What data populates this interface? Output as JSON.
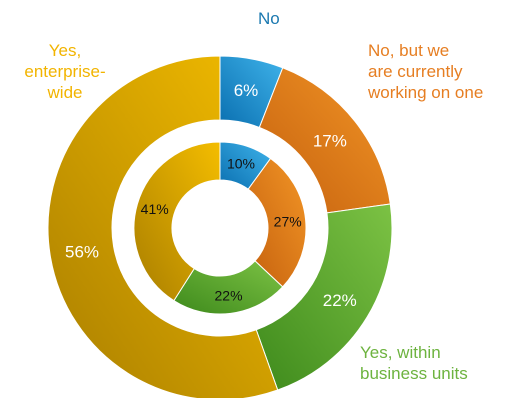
{
  "chart_data": {
    "type": "pie",
    "subtype": "double-donut",
    "categories": [
      "No",
      "No, but we are currently working on one",
      "Yes, within business units",
      "Yes, enterprise-wide"
    ],
    "category_labels": [
      "No",
      "No, but we\nare currently\nworking on one",
      "Yes, within\nbusiness units",
      "Yes,\nenterprise-\nwide"
    ],
    "series": [
      {
        "ring": "outer",
        "values": [
          6,
          17,
          22,
          56
        ],
        "labels": [
          "6%",
          "17%",
          "22%",
          "56%"
        ]
      },
      {
        "ring": "inner",
        "values": [
          10,
          27,
          22,
          41
        ],
        "labels": [
          "10%",
          "27%",
          "22%",
          "41%"
        ]
      }
    ],
    "colors": {
      "No": [
        "#0a6fb0",
        "#3fb3ea"
      ],
      "No, but we are currently working on one": [
        "#c4600e",
        "#f39626"
      ],
      "Yes, within business units": [
        "#3e8a1c",
        "#7cc244"
      ],
      "Yes, enterprise-wide": [
        "#a97e00",
        "#f4bd00"
      ]
    },
    "label_colors": [
      "#1b79b0",
      "#e67e22",
      "#6db33f",
      "#f2b400"
    ],
    "legend": "none"
  }
}
